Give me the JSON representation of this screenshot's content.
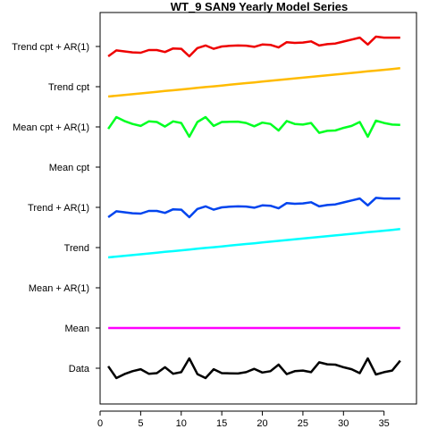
{
  "chart_data": {
    "type": "line",
    "title": "WT_9 SAN9 Yearly Model Series",
    "xlabel": "",
    "ylabel": "",
    "xlim": [
      0,
      39
    ],
    "x_ticks": [
      "0",
      "5",
      "10",
      "15",
      "20",
      "25",
      "30",
      "35"
    ],
    "row_labels": [
      "Data",
      "Mean",
      "Mean + AR(1)",
      "Trend",
      "Trend + AR(1)",
      "Mean cpt",
      "Mean cpt + AR(1)",
      "Trend cpt",
      "Trend cpt + AR(1)"
    ],
    "x": [
      1,
      2,
      3,
      4,
      5,
      6,
      7,
      8,
      9,
      10,
      11,
      12,
      13,
      14,
      15,
      16,
      17,
      18,
      19,
      20,
      21,
      22,
      23,
      24,
      25,
      26,
      27,
      28,
      29,
      30,
      31,
      32,
      33,
      34,
      35,
      36,
      37
    ],
    "series": [
      {
        "name": "Data",
        "color": "#000000",
        "row": 0,
        "values": [
          0.1,
          -0.5,
          -0.3,
          -0.15,
          -0.05,
          -0.28,
          -0.25,
          0.05,
          -0.28,
          -0.2,
          0.5,
          -0.3,
          -0.5,
          -0.05,
          -0.25,
          -0.26,
          -0.27,
          -0.2,
          -0.03,
          -0.22,
          -0.15,
          0.18,
          -0.3,
          -0.15,
          -0.12,
          -0.2,
          0.3,
          0.2,
          0.18,
          0.05,
          -0.05,
          -0.25,
          0.5,
          -0.32,
          -0.2,
          -0.12,
          0.38
        ]
      },
      {
        "name": "Mean",
        "color": "#ff00ff",
        "row": 1,
        "values": [
          0,
          0,
          0,
          0,
          0,
          0,
          0,
          0,
          0,
          0,
          0,
          0,
          0,
          0,
          0,
          0,
          0,
          0,
          0,
          0,
          0,
          0,
          0,
          0,
          0,
          0,
          0,
          0,
          0,
          0,
          0,
          0,
          0,
          0,
          0,
          0,
          0
        ]
      },
      {
        "name": "Trend",
        "color": "#00ffff",
        "row": 3,
        "values": [
          -0.5,
          -0.46,
          -0.42,
          -0.38,
          -0.34,
          -0.3,
          -0.26,
          -0.22,
          -0.18,
          -0.14,
          -0.1,
          -0.06,
          -0.02,
          0.02,
          0.06,
          0.1,
          0.14,
          0.18,
          0.22,
          0.26,
          0.3,
          0.34,
          0.38,
          0.42,
          0.46,
          0.5,
          0.54,
          0.58,
          0.62,
          0.66,
          0.7,
          0.74,
          0.78,
          0.82,
          0.86,
          0.9,
          0.94
        ]
      },
      {
        "name": "Trend + AR(1)",
        "color": "#0044ee",
        "row": 4,
        "values": [
          -0.5,
          -0.2,
          -0.25,
          -0.3,
          -0.32,
          -0.18,
          -0.18,
          -0.28,
          -0.1,
          -0.12,
          -0.5,
          -0.08,
          0.05,
          -0.12,
          0.0,
          0.03,
          0.05,
          0.04,
          -0.02,
          0.1,
          0.08,
          -0.05,
          0.22,
          0.18,
          0.2,
          0.26,
          0.05,
          0.12,
          0.15,
          0.25,
          0.35,
          0.45,
          0.1,
          0.48,
          0.45,
          0.45,
          0.45
        ]
      },
      {
        "name": "Mean cpt + AR(1)",
        "color": "#00ff22",
        "row": 6,
        "values": [
          -0.1,
          0.5,
          0.3,
          0.15,
          0.05,
          0.28,
          0.25,
          0.02,
          0.28,
          0.2,
          -0.5,
          0.25,
          0.5,
          0.05,
          0.25,
          0.26,
          0.27,
          0.2,
          0.03,
          0.22,
          0.15,
          -0.18,
          0.3,
          0.15,
          0.12,
          0.2,
          -0.3,
          -0.2,
          -0.18,
          -0.05,
          0.05,
          0.25,
          -0.5,
          0.32,
          0.2,
          0.12,
          0.1
        ]
      },
      {
        "name": "Trend cpt",
        "color": "#ffbb00",
        "row": 7,
        "values": [
          -0.5,
          -0.46,
          -0.42,
          -0.38,
          -0.34,
          -0.3,
          -0.26,
          -0.22,
          -0.18,
          -0.14,
          -0.1,
          -0.06,
          -0.02,
          0.02,
          0.06,
          0.1,
          0.14,
          0.18,
          0.22,
          0.26,
          0.3,
          0.34,
          0.38,
          0.42,
          0.46,
          0.5,
          0.54,
          0.58,
          0.62,
          0.66,
          0.7,
          0.74,
          0.78,
          0.82,
          0.86,
          0.9,
          0.94
        ]
      },
      {
        "name": "Trend cpt + AR(1)",
        "color": "#ee0000",
        "row": 8,
        "values": [
          -0.5,
          -0.2,
          -0.25,
          -0.3,
          -0.32,
          -0.18,
          -0.18,
          -0.28,
          -0.1,
          -0.12,
          -0.5,
          -0.08,
          0.05,
          -0.12,
          0.0,
          0.03,
          0.05,
          0.04,
          -0.02,
          0.1,
          0.08,
          -0.05,
          0.22,
          0.18,
          0.2,
          0.26,
          0.05,
          0.12,
          0.15,
          0.25,
          0.35,
          0.45,
          0.1,
          0.5,
          0.45,
          0.45,
          0.45
        ]
      }
    ]
  }
}
